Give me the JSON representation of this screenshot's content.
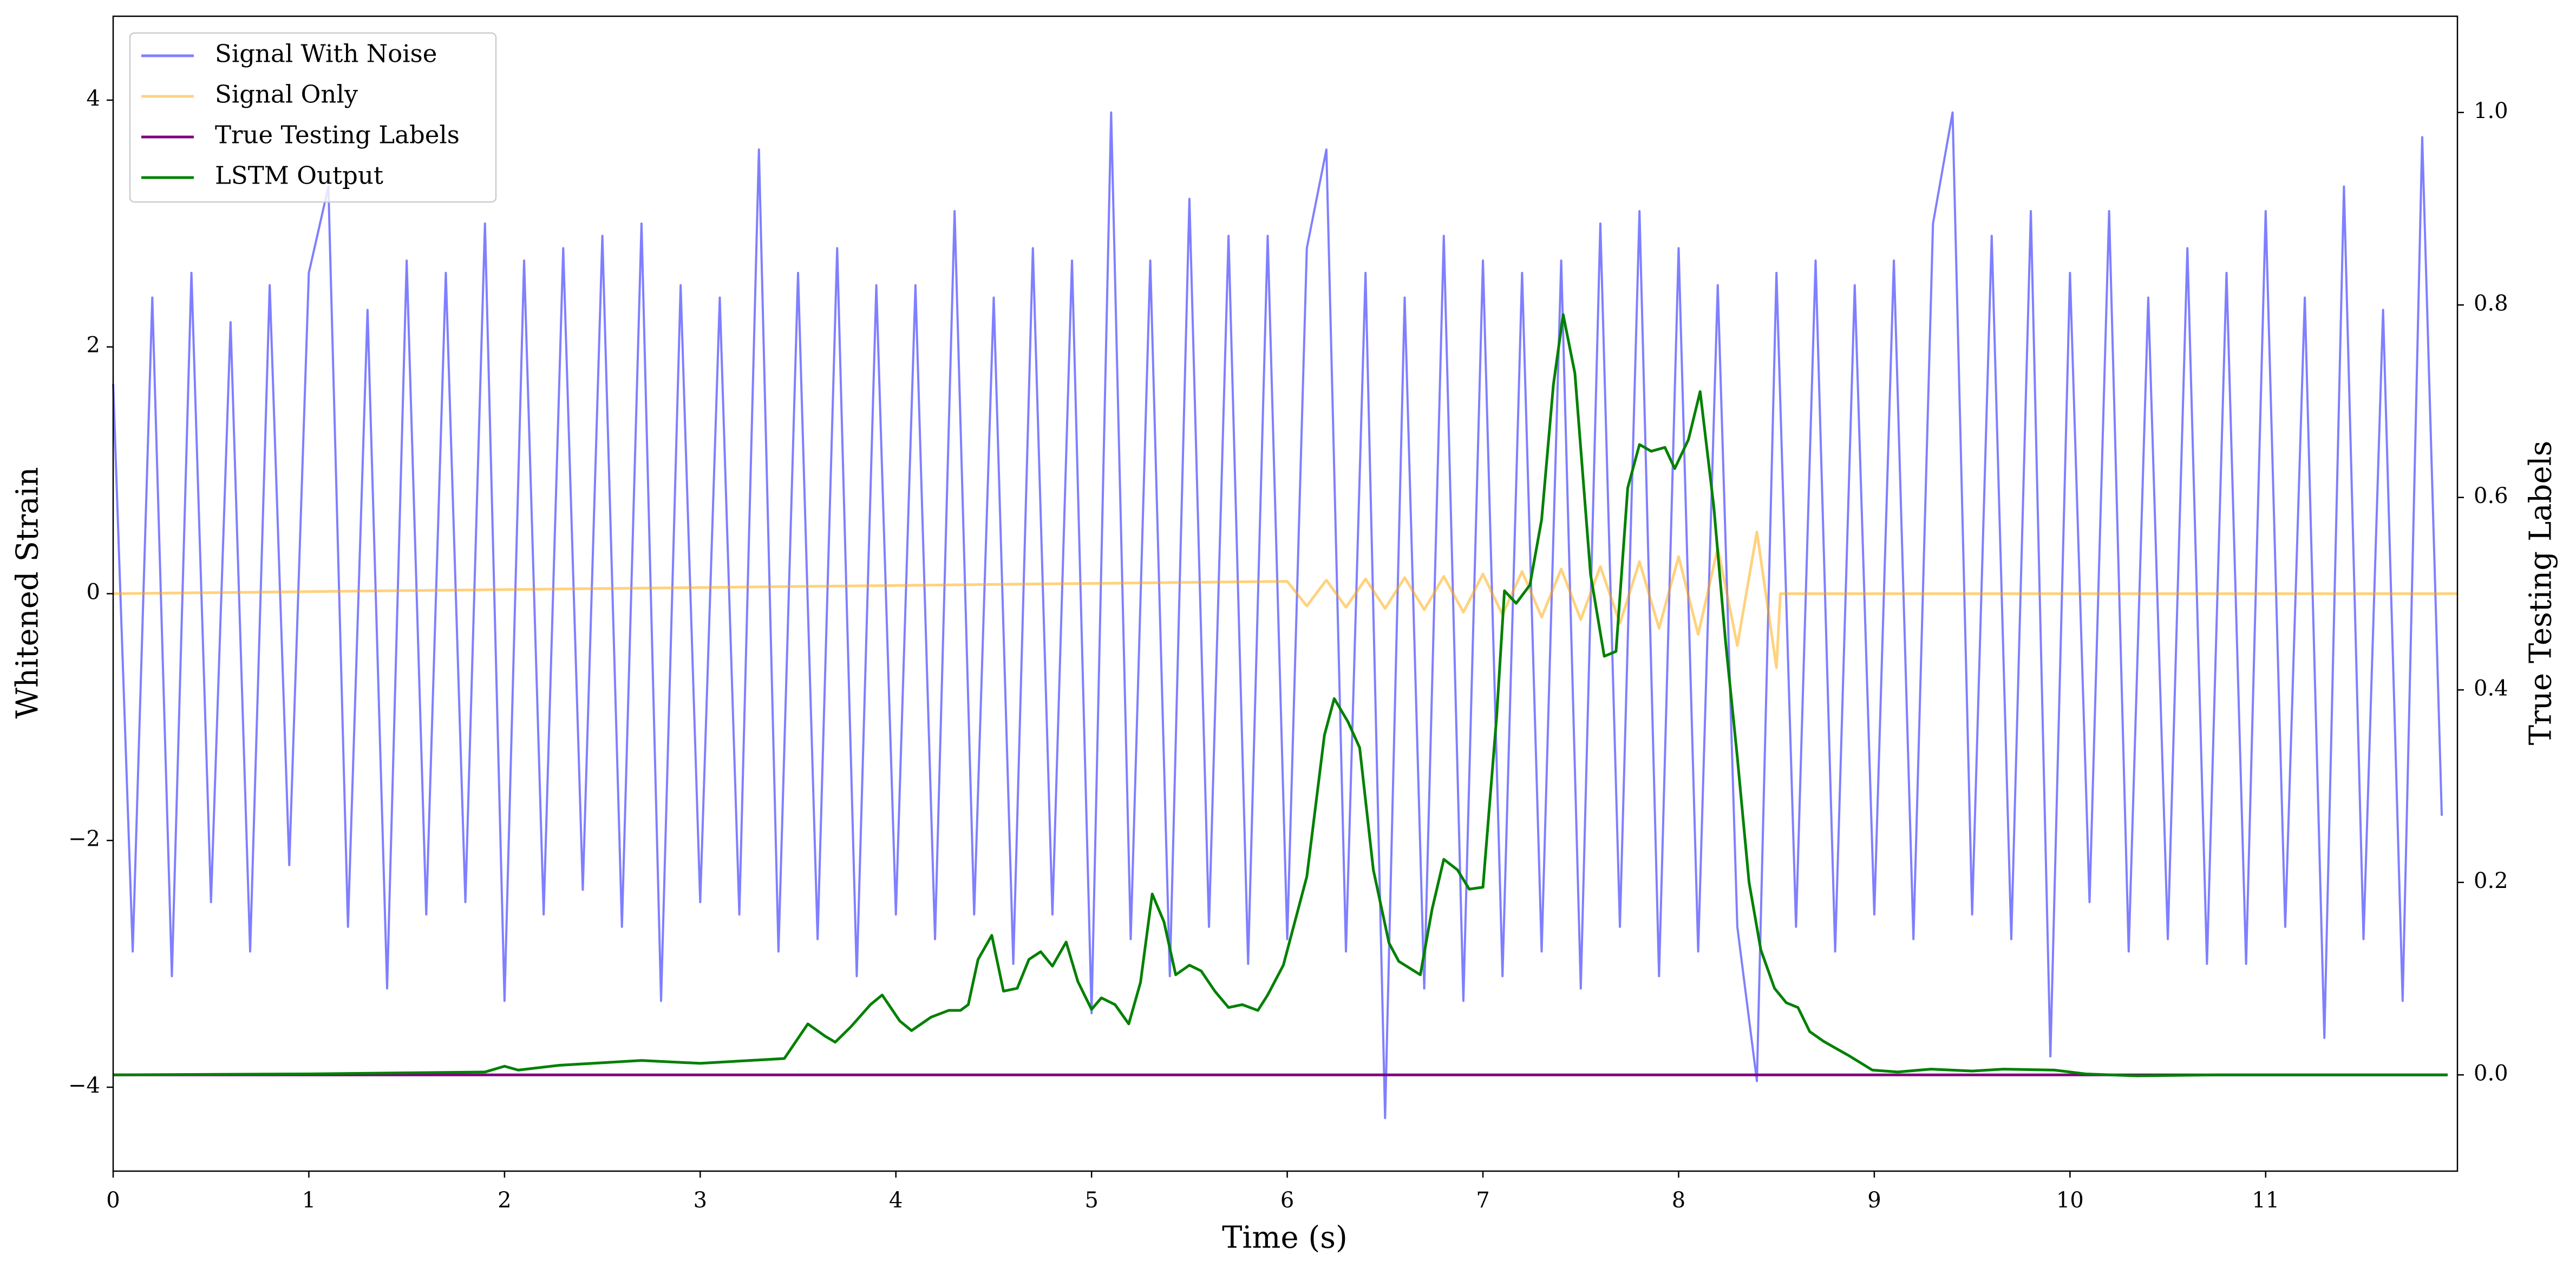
{
  "chart_data": {
    "type": "line",
    "xlabel": "Time (s)",
    "ylabel": "Whitened Strain",
    "y2label": "True Testing Labels",
    "xlim": [
      0,
      11.98
    ],
    "ylim": [
      -4.68,
      4.68
    ],
    "y2lim": [
      -0.1,
      1.1
    ],
    "xticks": [
      0,
      1,
      2,
      3,
      4,
      5,
      6,
      7,
      8,
      9,
      10,
      11
    ],
    "yticks": [
      {
        "value": -4,
        "label": "−4"
      },
      {
        "value": -2,
        "label": "−2"
      },
      0,
      2,
      4
    ],
    "y2ticks": [
      {
        "value": 0,
        "label": "0.0"
      },
      {
        "value": 0.2,
        "label": "0.2"
      },
      {
        "value": 0.4,
        "label": "0.4"
      },
      {
        "value": 0.6,
        "label": "0.6"
      },
      {
        "value": 0.8,
        "label": "0.8"
      },
      {
        "value": 1.0,
        "label": "1.0"
      }
    ],
    "legend": "upper left",
    "grid": false,
    "series": [
      {
        "name": "Signal With Noise",
        "color": "#0000ff",
        "alpha": 0.5,
        "x": [
          0,
          0.1,
          0.2,
          0.3,
          0.4,
          0.5,
          0.6,
          0.7,
          0.8,
          0.9,
          1,
          1.1,
          1.2,
          1.3,
          1.4,
          1.5,
          1.6,
          1.7,
          1.8,
          1.9,
          2,
          2.1,
          2.2,
          2.3,
          2.4,
          2.5,
          2.6,
          2.7,
          2.8,
          2.9,
          3,
          3.1,
          3.2,
          3.3,
          3.4,
          3.5,
          3.6,
          3.7,
          3.8,
          3.9,
          4,
          4.1,
          4.2,
          4.3,
          4.4,
          4.5,
          4.6,
          4.7,
          4.8,
          4.9,
          5,
          5.1,
          5.2,
          5.3,
          5.4,
          5.5,
          5.6,
          5.7,
          5.8,
          5.9,
          6,
          6.1,
          6.2,
          6.3,
          6.4,
          6.5,
          6.6,
          6.7,
          6.8,
          6.9,
          7,
          7.1,
          7.2,
          7.3,
          7.4,
          7.5,
          7.6,
          7.7,
          7.8,
          7.9,
          8,
          8.1,
          8.2,
          8.3,
          8.4,
          8.5,
          8.6,
          8.7,
          8.8,
          8.9,
          9,
          9.1,
          9.2,
          9.3,
          9.4,
          9.5,
          9.6,
          9.7,
          9.8,
          9.9,
          10,
          10.1,
          10.2,
          10.3,
          10.4,
          10.5,
          10.6,
          10.7,
          10.8,
          10.9,
          11,
          11.1,
          11.2,
          11.3,
          11.4,
          11.5,
          11.6,
          11.7,
          11.8,
          11.9
        ],
        "values": [
          1.7,
          -2.9,
          2.4,
          -3.1,
          2.6,
          -2.5,
          2.2,
          -2.9,
          2.5,
          -2.2,
          2.6,
          3.3,
          -2.7,
          2.3,
          -3.2,
          2.7,
          -2.6,
          2.6,
          -2.5,
          3.0,
          -3.3,
          2.7,
          -2.6,
          2.8,
          -2.4,
          2.9,
          -2.7,
          3.0,
          -3.3,
          2.5,
          -2.5,
          2.4,
          -2.6,
          3.6,
          -2.9,
          2.6,
          -2.8,
          2.8,
          -3.1,
          2.5,
          -2.6,
          2.5,
          -2.8,
          3.1,
          -2.6,
          2.4,
          -3.0,
          2.8,
          -2.6,
          2.7,
          -3.4,
          3.9,
          -2.8,
          2.7,
          -3.1,
          3.2,
          -2.7,
          2.9,
          -3.0,
          2.9,
          -2.8,
          2.8,
          3.6,
          -2.9,
          2.6,
          -4.25,
          2.4,
          -3.2,
          2.9,
          -3.3,
          2.7,
          -3.1,
          2.6,
          -2.9,
          2.7,
          -3.2,
          3.0,
          -2.7,
          3.1,
          -3.1,
          2.8,
          -2.9,
          2.5,
          -2.7,
          -3.95,
          2.6,
          -2.7,
          2.7,
          -2.9,
          2.5,
          -2.6,
          2.7,
          -2.8,
          3.0,
          3.9,
          -2.6,
          2.9,
          -2.8,
          3.1,
          -3.75,
          2.6,
          -2.5,
          3.1,
          -2.9,
          2.4,
          -2.8,
          2.8,
          -3.0,
          2.6,
          -3.0,
          3.1,
          -2.7,
          2.4,
          -3.6,
          3.3,
          -2.8,
          2.3,
          -3.3,
          3.7,
          -1.8
        ]
      },
      {
        "name": "Signal Only",
        "color": "#ffa500",
        "alpha": 0.5,
        "x": [
          0,
          6,
          6.1,
          6.2,
          6.3,
          6.4,
          6.5,
          6.6,
          6.7,
          6.8,
          6.9,
          7,
          7.1,
          7.2,
          7.3,
          7.4,
          7.5,
          7.6,
          7.7,
          7.8,
          7.9,
          8,
          8.1,
          8.2,
          8.3,
          8.4,
          8.5,
          8.52,
          11.98
        ],
        "values": [
          0,
          0.1,
          -0.1,
          0.11,
          -0.11,
          0.12,
          -0.12,
          0.13,
          -0.13,
          0.14,
          -0.15,
          0.16,
          -0.17,
          0.18,
          -0.19,
          0.2,
          -0.21,
          0.22,
          -0.24,
          0.26,
          -0.28,
          0.3,
          -0.33,
          0.37,
          -0.42,
          0.5,
          -0.6,
          0,
          0
        ]
      },
      {
        "name": "True Testing Labels",
        "color": "#800080",
        "alpha": 1,
        "axis": "y2",
        "x": [
          0,
          11.93
        ],
        "values": [
          0,
          0
        ]
      },
      {
        "name": "LSTM Output",
        "color": "#008000",
        "alpha": 1,
        "axis": "y2",
        "x": [
          0,
          1,
          1.9,
          2,
          2.07,
          2.28,
          2.7,
          3,
          3.43,
          3.55,
          3.64,
          3.69,
          3.77,
          3.87,
          3.93,
          4.02,
          4.08,
          4.18,
          4.27,
          4.33,
          4.37,
          4.42,
          4.49,
          4.55,
          4.62,
          4.68,
          4.74,
          4.8,
          4.87,
          4.93,
          5,
          5.05,
          5.12,
          5.19,
          5.25,
          5.31,
          5.37,
          5.43,
          5.5,
          5.56,
          5.63,
          5.7,
          5.77,
          5.85,
          5.9,
          5.98,
          6.1,
          6.19,
          6.24,
          6.31,
          6.37,
          6.44,
          6.52,
          6.57,
          6.68,
          6.74,
          6.8,
          6.87,
          6.93,
          7,
          7.07,
          7.11,
          7.17,
          7.24,
          7.3,
          7.36,
          7.41,
          7.47,
          7.55,
          7.62,
          7.68,
          7.74,
          7.8,
          7.86,
          7.93,
          7.98,
          8.05,
          8.11,
          8.18,
          8.24,
          8.3,
          8.36,
          8.42,
          8.49,
          8.55,
          8.61,
          8.67,
          8.74,
          8.8,
          8.87,
          8.99,
          9.12,
          9.29,
          9.5,
          9.66,
          9.92,
          10.08,
          10.34,
          10.76,
          11.93
        ],
        "values": [
          0,
          0.001,
          0.003,
          0.009,
          0.005,
          0.01,
          0.015,
          0.012,
          0.017,
          0.053,
          0.04,
          0.034,
          0.05,
          0.073,
          0.083,
          0.056,
          0.046,
          0.06,
          0.067,
          0.067,
          0.073,
          0.12,
          0.145,
          0.087,
          0.09,
          0.12,
          0.128,
          0.113,
          0.138,
          0.097,
          0.068,
          0.08,
          0.073,
          0.053,
          0.096,
          0.188,
          0.159,
          0.104,
          0.114,
          0.108,
          0.087,
          0.07,
          0.073,
          0.067,
          0.083,
          0.114,
          0.206,
          0.353,
          0.391,
          0.367,
          0.34,
          0.213,
          0.137,
          0.118,
          0.104,
          0.172,
          0.224,
          0.213,
          0.193,
          0.195,
          0.372,
          0.503,
          0.49,
          0.509,
          0.577,
          0.717,
          0.79,
          0.729,
          0.52,
          0.435,
          0.44,
          0.61,
          0.655,
          0.648,
          0.652,
          0.63,
          0.66,
          0.71,
          0.59,
          0.45,
          0.33,
          0.2,
          0.13,
          0.09,
          0.075,
          0.07,
          0.045,
          0.035,
          0.028,
          0.02,
          0.005,
          0.003,
          0.006,
          0.004,
          0.006,
          0.005,
          0.001,
          -0.001,
          0,
          0
        ]
      }
    ]
  }
}
